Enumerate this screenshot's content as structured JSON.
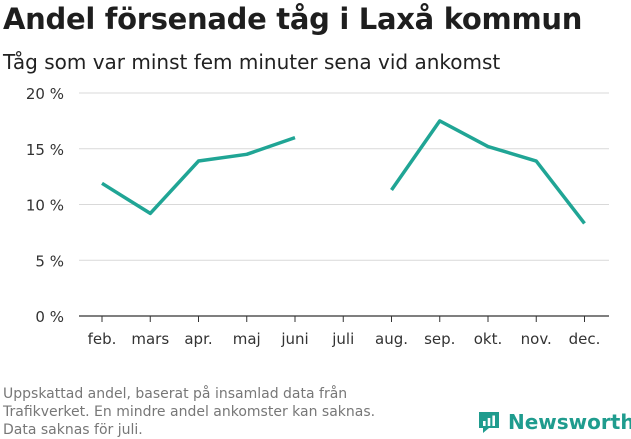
{
  "title": "Andel försenade tåg i Laxå kommun",
  "subtitle": "Tåg som var minst fem minuter sena vid ankomst",
  "footnote": [
    "Uppskattad andel, baserat på insamlad data från",
    "Trafikverket. En mindre andel ankomster kan saknas.",
    "Data saknas för juli."
  ],
  "brand": "Newsworthy",
  "colors": {
    "line": "#20a595",
    "brand": "#1f9c8e",
    "grid": "#d9d9d9",
    "axis": "#333333"
  },
  "chart_data": {
    "type": "line",
    "categories": [
      "feb.",
      "mars",
      "apr.",
      "maj",
      "juni",
      "juli",
      "aug.",
      "sep.",
      "okt.",
      "nov.",
      "dec."
    ],
    "series": [
      {
        "values": [
          11.9,
          9.2,
          13.9,
          14.5,
          16.0,
          null,
          11.3,
          17.5,
          15.2,
          13.9,
          8.3
        ]
      }
    ],
    "ylim": [
      0,
      20
    ],
    "yticks": [
      0,
      5,
      10,
      15,
      20
    ],
    "ytick_labels": [
      "0 %",
      "5 %",
      "10 %",
      "15 %",
      "20 %"
    ],
    "grid": true,
    "legend": "none"
  }
}
